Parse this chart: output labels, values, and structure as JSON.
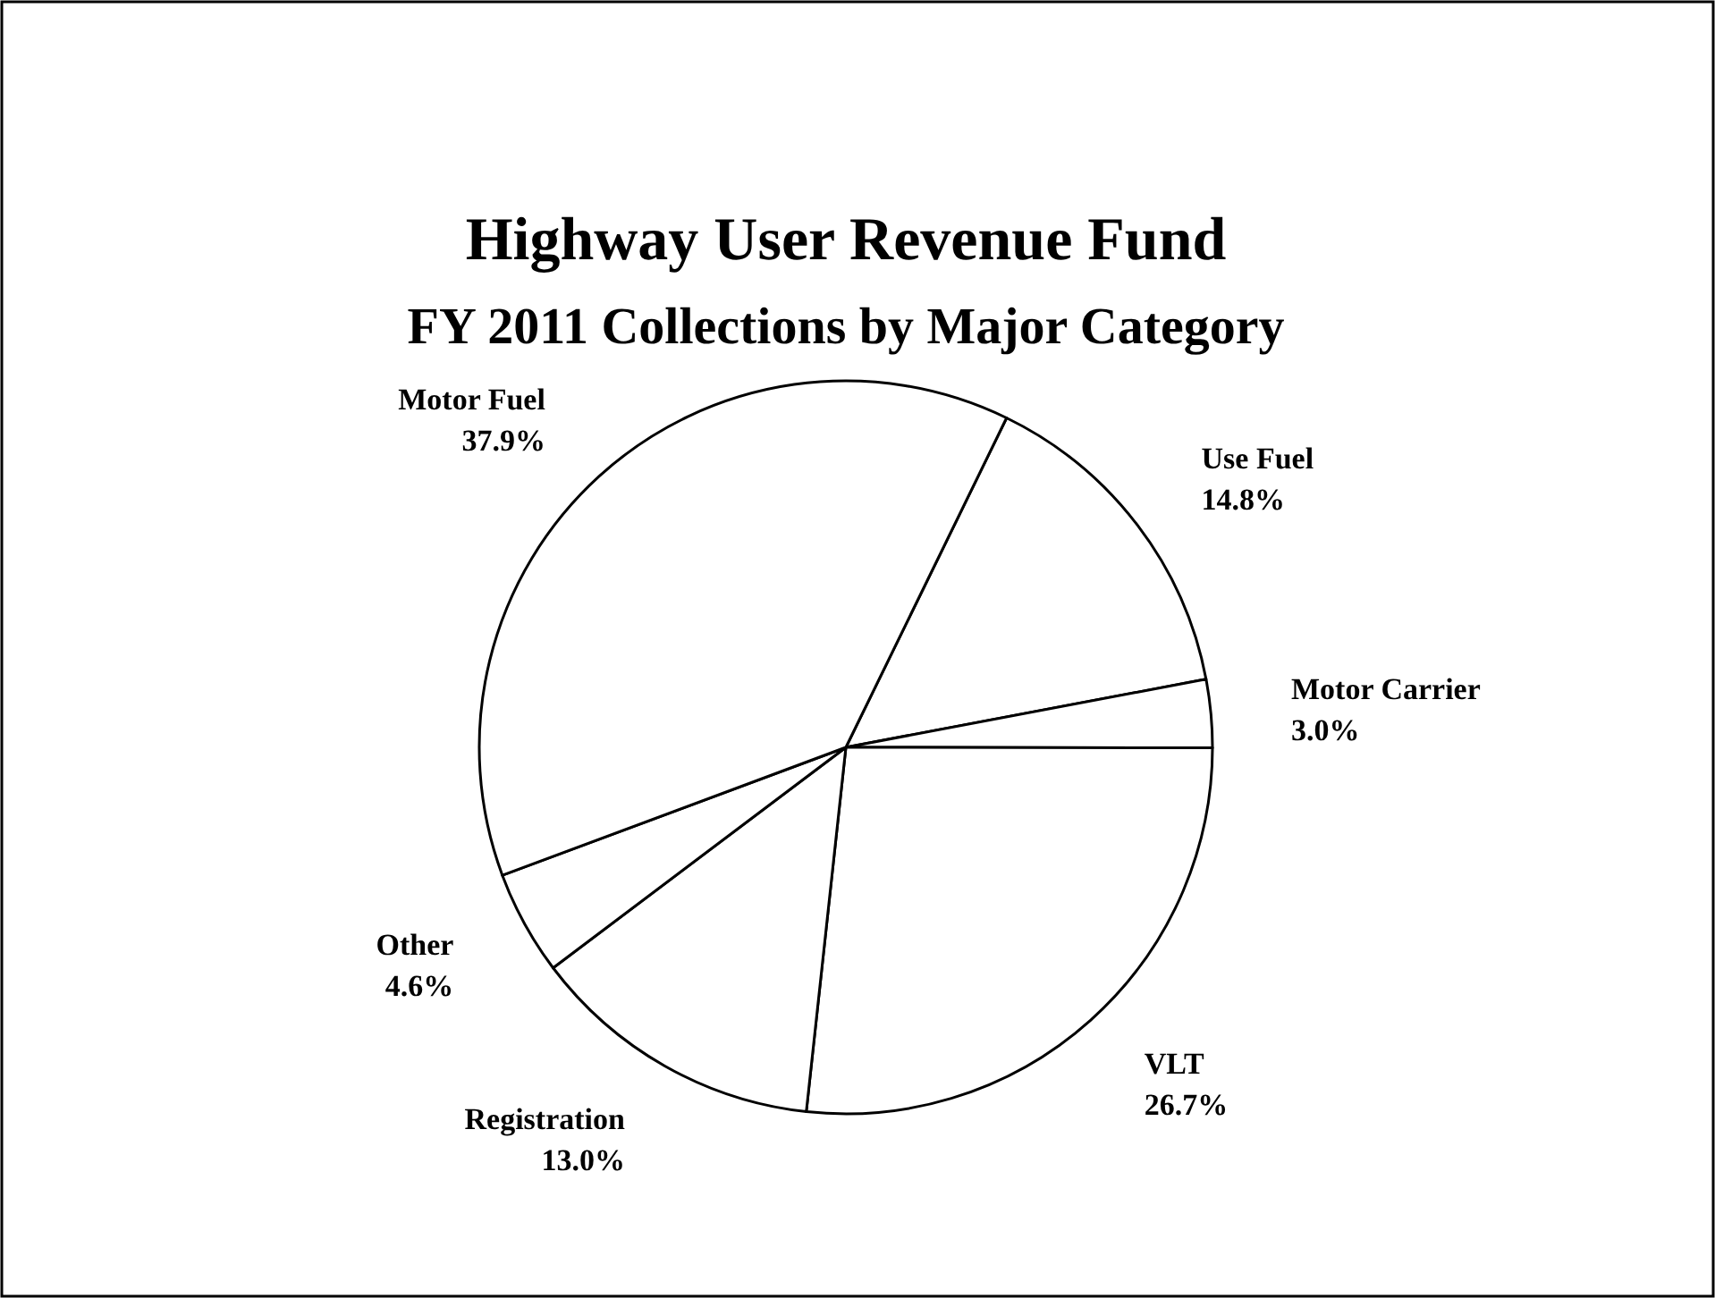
{
  "chart_data": {
    "type": "pie",
    "title": "Highway User Revenue Fund",
    "subtitle": "FY 2011 Collections by Major Category",
    "categories": [
      "Use Fuel",
      "Motor Carrier",
      "VLT",
      "Registration",
      "Other",
      "Motor Fuel"
    ],
    "values": [
      14.8,
      3.0,
      26.7,
      13.0,
      4.6,
      37.9
    ],
    "colors": [
      "#ffffff",
      "#ffffff",
      "#ffffff",
      "#ffffff",
      "#ffffff",
      "#ffffff"
    ],
    "value_labels": [
      "14.8%",
      "3.0%",
      "26.7%",
      "13.0%",
      "4.6%",
      "37.9%"
    ]
  }
}
